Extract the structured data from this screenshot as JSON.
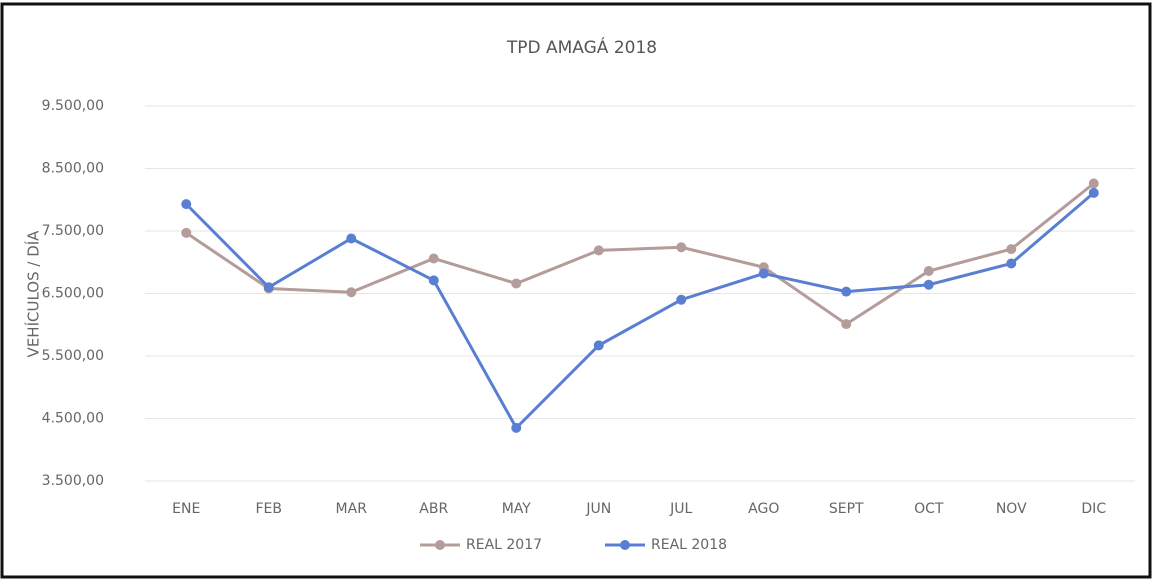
{
  "chart_data": {
    "type": "line",
    "title": "TPD AMAGÁ 2018",
    "ylabel": "VEHÍCULOS / DÍA",
    "categories": [
      "ENE",
      "FEB",
      "MAR",
      "ABR",
      "MAY",
      "JUN",
      "JUL",
      "AGO",
      "SEPT",
      "OCT",
      "NOV",
      "DIC"
    ],
    "series": [
      {
        "name": "REAL 2017",
        "color": "#b39c9a",
        "values": [
          7470,
          6580,
          6520,
          7060,
          6660,
          7190,
          7240,
          6920,
          6010,
          6860,
          7210,
          8260
        ]
      },
      {
        "name": "REAL 2018",
        "color": "#5a7fd2",
        "values": [
          7930,
          6600,
          7380,
          6710,
          4350,
          5670,
          6400,
          6820,
          6530,
          6640,
          6980,
          8110
        ]
      }
    ],
    "ylim": [
      3500,
      9500
    ],
    "yticks": [
      {
        "value": 3500,
        "label": "3.500,00"
      },
      {
        "value": 4500,
        "label": "4.500,00"
      },
      {
        "value": 5500,
        "label": "5.500,00"
      },
      {
        "value": 6500,
        "label": "6.500,00"
      },
      {
        "value": 7500,
        "label": "7.500,00"
      },
      {
        "value": 8500,
        "label": "8.500,00"
      },
      {
        "value": 9500,
        "label": "9.500,00"
      }
    ],
    "grid": true,
    "legend": "bottom"
  }
}
